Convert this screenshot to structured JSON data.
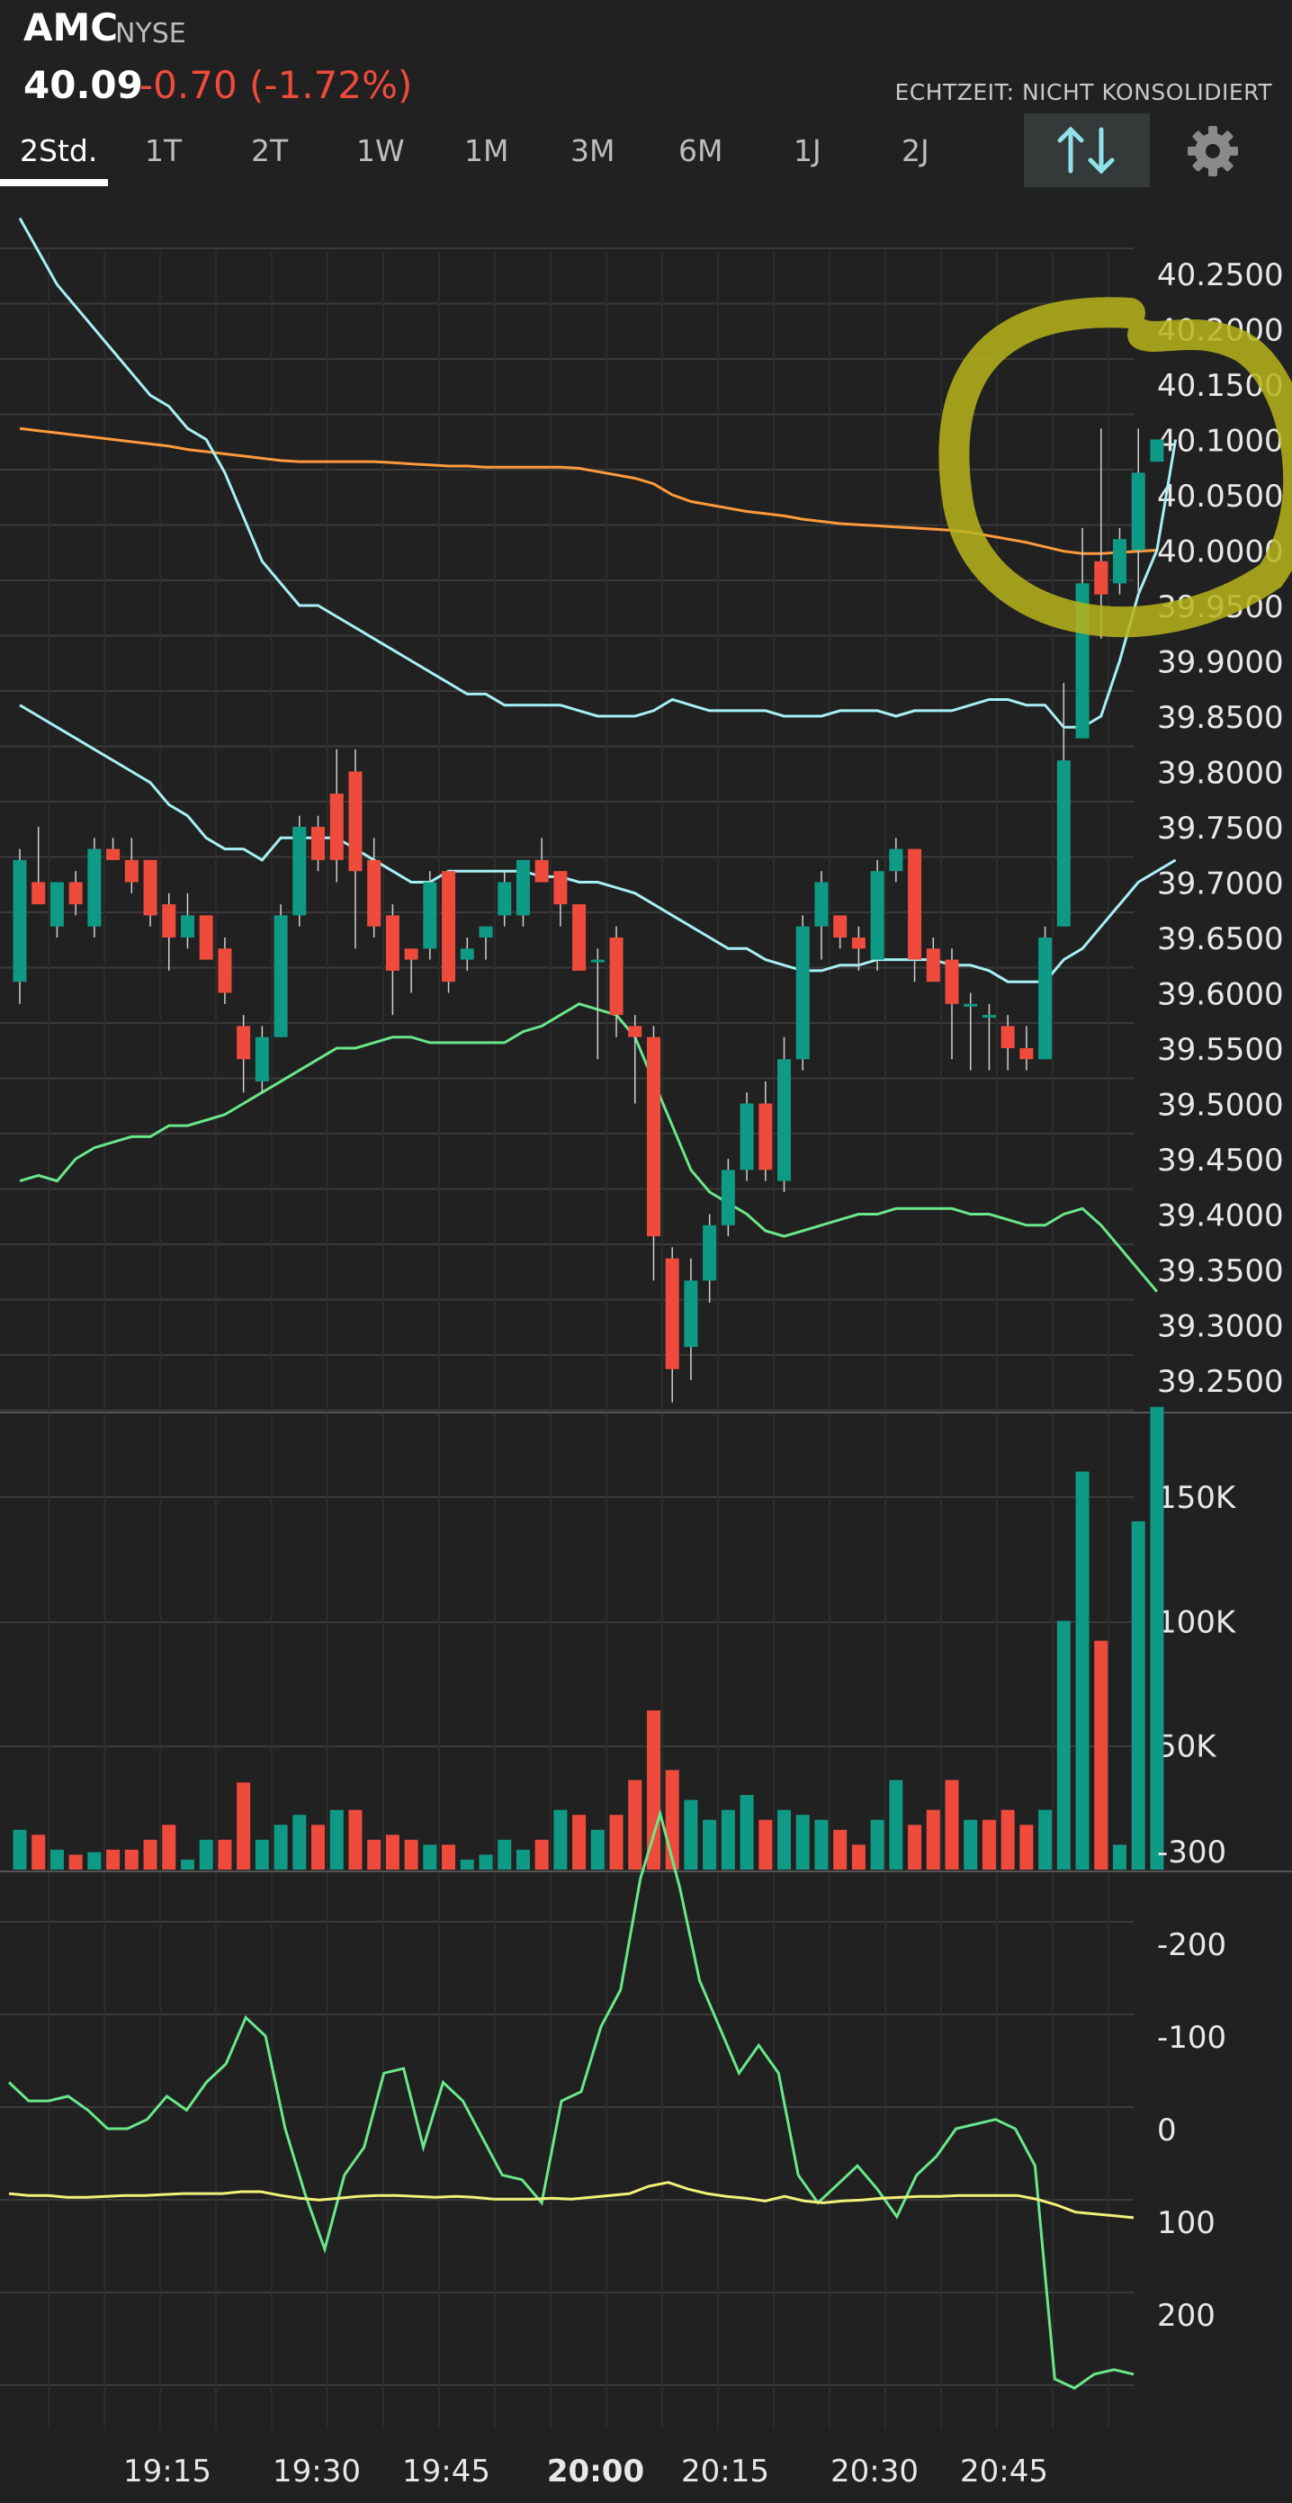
{
  "header": {
    "symbol": "AMC",
    "exchange": "NYSE",
    "price": "40.09",
    "change": "-0.70",
    "change_pct": "(-1.72%)",
    "realtime_note": "ECHTZEIT: NICHT KONSOLIDIERT"
  },
  "tabs": [
    "2Std.",
    "1T",
    "2T",
    "1W",
    "1M",
    "3M",
    "6M",
    "1J",
    "2J"
  ],
  "active_tab": "2Std.",
  "colors": {
    "up": "#0f9a86",
    "down": "#ef4b3c",
    "background": "#212121",
    "highlight": "#b7b41b"
  },
  "icons": [
    "sort-arrows-icon",
    "gear-icon"
  ],
  "chart_data": [
    {
      "type": "candlestick",
      "y_ticks": [
        "40.2500",
        "40.2000",
        "40.1500",
        "40.1000",
        "40.0500",
        "40.0000",
        "39.9500",
        "39.9000",
        "39.8500",
        "39.8000",
        "39.7500",
        "39.7000",
        "39.6500",
        "39.6000",
        "39.5500",
        "39.5000",
        "39.4500",
        "39.4000",
        "39.3500",
        "39.3000",
        "39.2500"
      ],
      "ylim": [
        39.25,
        40.25
      ],
      "x_ticks": [
        "19:15",
        "19:30",
        "19:45",
        "20:00",
        "20:15",
        "20:30",
        "20:45"
      ],
      "candles": [
        {
          "o": 39.61,
          "h": 39.73,
          "l": 39.59,
          "c": 39.72
        },
        {
          "o": 39.7,
          "h": 39.75,
          "l": 39.68,
          "c": 39.68
        },
        {
          "o": 39.66,
          "h": 39.7,
          "l": 39.65,
          "c": 39.7
        },
        {
          "o": 39.7,
          "h": 39.71,
          "l": 39.67,
          "c": 39.68
        },
        {
          "o": 39.66,
          "h": 39.74,
          "l": 39.65,
          "c": 39.73
        },
        {
          "o": 39.73,
          "h": 39.74,
          "l": 39.72,
          "c": 39.72
        },
        {
          "o": 39.72,
          "h": 39.74,
          "l": 39.69,
          "c": 39.7
        },
        {
          "o": 39.72,
          "h": 39.72,
          "l": 39.66,
          "c": 39.67
        },
        {
          "o": 39.68,
          "h": 39.69,
          "l": 39.62,
          "c": 39.65
        },
        {
          "o": 39.65,
          "h": 39.69,
          "l": 39.64,
          "c": 39.67
        },
        {
          "o": 39.67,
          "h": 39.67,
          "l": 39.63,
          "c": 39.63
        },
        {
          "o": 39.64,
          "h": 39.65,
          "l": 39.59,
          "c": 39.6
        },
        {
          "o": 39.57,
          "h": 39.58,
          "l": 39.51,
          "c": 39.54
        },
        {
          "o": 39.52,
          "h": 39.57,
          "l": 39.51,
          "c": 39.56
        },
        {
          "o": 39.56,
          "h": 39.68,
          "l": 39.56,
          "c": 39.67
        },
        {
          "o": 39.67,
          "h": 39.76,
          "l": 39.66,
          "c": 39.75
        },
        {
          "o": 39.75,
          "h": 39.76,
          "l": 39.71,
          "c": 39.72
        },
        {
          "o": 39.78,
          "h": 39.82,
          "l": 39.7,
          "c": 39.72
        },
        {
          "o": 39.8,
          "h": 39.82,
          "l": 39.64,
          "c": 39.71
        },
        {
          "o": 39.72,
          "h": 39.74,
          "l": 39.65,
          "c": 39.66
        },
        {
          "o": 39.67,
          "h": 39.68,
          "l": 39.58,
          "c": 39.62
        },
        {
          "o": 39.64,
          "h": 39.64,
          "l": 39.6,
          "c": 39.63
        },
        {
          "o": 39.64,
          "h": 39.71,
          "l": 39.63,
          "c": 39.7
        },
        {
          "o": 39.71,
          "h": 39.71,
          "l": 39.6,
          "c": 39.61
        },
        {
          "o": 39.63,
          "h": 39.65,
          "l": 39.62,
          "c": 39.64
        },
        {
          "o": 39.65,
          "h": 39.66,
          "l": 39.63,
          "c": 39.66
        },
        {
          "o": 39.67,
          "h": 39.71,
          "l": 39.66,
          "c": 39.7
        },
        {
          "o": 39.67,
          "h": 39.72,
          "l": 39.66,
          "c": 39.72
        },
        {
          "o": 39.72,
          "h": 39.74,
          "l": 39.7,
          "c": 39.7
        },
        {
          "o": 39.71,
          "h": 39.71,
          "l": 39.66,
          "c": 39.68
        },
        {
          "o": 39.68,
          "h": 39.68,
          "l": 39.62,
          "c": 39.62
        },
        {
          "o": 39.63,
          "h": 39.64,
          "l": 39.54,
          "c": 39.63
        },
        {
          "o": 39.65,
          "h": 39.66,
          "l": 39.56,
          "c": 39.58
        },
        {
          "o": 39.57,
          "h": 39.58,
          "l": 39.5,
          "c": 39.56
        },
        {
          "o": 39.56,
          "h": 39.57,
          "l": 39.34,
          "c": 39.38
        },
        {
          "o": 39.36,
          "h": 39.37,
          "l": 39.23,
          "c": 39.26
        },
        {
          "o": 39.28,
          "h": 39.36,
          "l": 39.25,
          "c": 39.34
        },
        {
          "o": 39.34,
          "h": 39.4,
          "l": 39.32,
          "c": 39.39
        },
        {
          "o": 39.39,
          "h": 39.45,
          "l": 39.38,
          "c": 39.44
        },
        {
          "o": 39.44,
          "h": 39.51,
          "l": 39.43,
          "c": 39.5
        },
        {
          "o": 39.5,
          "h": 39.52,
          "l": 39.43,
          "c": 39.44
        },
        {
          "o": 39.43,
          "h": 39.56,
          "l": 39.42,
          "c": 39.54
        },
        {
          "o": 39.54,
          "h": 39.67,
          "l": 39.53,
          "c": 39.66
        },
        {
          "o": 39.66,
          "h": 39.71,
          "l": 39.63,
          "c": 39.7
        },
        {
          "o": 39.67,
          "h": 39.67,
          "l": 39.64,
          "c": 39.65
        },
        {
          "o": 39.65,
          "h": 39.66,
          "l": 39.62,
          "c": 39.64
        },
        {
          "o": 39.63,
          "h": 39.72,
          "l": 39.62,
          "c": 39.71
        },
        {
          "o": 39.71,
          "h": 39.74,
          "l": 39.7,
          "c": 39.73
        },
        {
          "o": 39.73,
          "h": 39.73,
          "l": 39.61,
          "c": 39.63
        },
        {
          "o": 39.64,
          "h": 39.65,
          "l": 39.61,
          "c": 39.61
        },
        {
          "o": 39.63,
          "h": 39.64,
          "l": 39.54,
          "c": 39.59
        },
        {
          "o": 39.59,
          "h": 39.6,
          "l": 39.53,
          "c": 39.59
        },
        {
          "o": 39.58,
          "h": 39.59,
          "l": 39.53,
          "c": 39.58
        },
        {
          "o": 39.57,
          "h": 39.58,
          "l": 39.53,
          "c": 39.55
        },
        {
          "o": 39.55,
          "h": 39.57,
          "l": 39.53,
          "c": 39.54
        },
        {
          "o": 39.54,
          "h": 39.66,
          "l": 39.54,
          "c": 39.65
        },
        {
          "o": 39.66,
          "h": 39.88,
          "l": 39.66,
          "c": 39.81
        },
        {
          "o": 39.83,
          "h": 40.02,
          "l": 39.83,
          "c": 39.97
        },
        {
          "o": 39.99,
          "h": 40.11,
          "l": 39.92,
          "c": 39.96
        },
        {
          "o": 39.97,
          "h": 40.02,
          "l": 39.96,
          "c": 40.01
        },
        {
          "o": 40.0,
          "h": 40.11,
          "l": 39.96,
          "c": 40.07
        },
        {
          "o": 40.08,
          "h": 40.1,
          "l": 40.08,
          "c": 40.1
        }
      ],
      "series": [
        {
          "name": "",
          "color": "#ff9a3c",
          "values": [
            40.11,
            40.108,
            40.106,
            40.104,
            40.102,
            40.1,
            40.098,
            40.096,
            40.094,
            40.091,
            40.089,
            40.087,
            40.085,
            40.083,
            40.081,
            40.08,
            40.08,
            40.08,
            40.08,
            40.08,
            40.079,
            40.078,
            40.077,
            40.076,
            40.076,
            40.075,
            40.075,
            40.075,
            40.075,
            40.075,
            40.074,
            40.071,
            40.068,
            40.065,
            40.06,
            40.05,
            40.044,
            40.041,
            40.038,
            40.035,
            40.033,
            40.031,
            40.028,
            40.026,
            40.024,
            40.023,
            40.022,
            40.021,
            40.02,
            40.019,
            40.018,
            40.016,
            40.013,
            40.01,
            40.007,
            40.003,
            39.999,
            39.997,
            39.997,
            39.998,
            39.999,
            40.0
          ]
        },
        {
          "name": "",
          "color": "#a7f0f5",
          "values": [
            40.3,
            40.27,
            40.24,
            40.22,
            40.2,
            40.18,
            40.16,
            40.14,
            40.13,
            40.11,
            40.1,
            40.07,
            40.03,
            39.99,
            39.97,
            39.95,
            39.95,
            39.94,
            39.93,
            39.92,
            39.91,
            39.9,
            39.89,
            39.88,
            39.87,
            39.87,
            39.86,
            39.86,
            39.86,
            39.86,
            39.855,
            39.85,
            39.85,
            39.85,
            39.855,
            39.865,
            39.86,
            39.855,
            39.855,
            39.855,
            39.855,
            39.85,
            39.85,
            39.85,
            39.855,
            39.855,
            39.855,
            39.85,
            39.855,
            39.855,
            39.855,
            39.86,
            39.865,
            39.865,
            39.86,
            39.86,
            39.84,
            39.84,
            39.85,
            39.9,
            39.96,
            40.0,
            40.1
          ]
        },
        {
          "name": "",
          "color": "#a7f0f5",
          "values": [
            39.86,
            39.85,
            39.84,
            39.83,
            39.82,
            39.81,
            39.8,
            39.79,
            39.77,
            39.76,
            39.74,
            39.73,
            39.73,
            39.72,
            39.74,
            39.74,
            39.74,
            39.74,
            39.73,
            39.72,
            39.71,
            39.7,
            39.7,
            39.71,
            39.71,
            39.71,
            39.71,
            39.71,
            39.705,
            39.705,
            39.7,
            39.7,
            39.695,
            39.69,
            39.68,
            39.67,
            39.66,
            39.65,
            39.64,
            39.64,
            39.63,
            39.625,
            39.62,
            39.62,
            39.625,
            39.625,
            39.63,
            39.63,
            39.63,
            39.63,
            39.625,
            39.625,
            39.62,
            39.61,
            39.61,
            39.61,
            39.63,
            39.64,
            39.66,
            39.68,
            39.7,
            39.71,
            39.72
          ]
        },
        {
          "name": "",
          "color": "#69e88a",
          "values": [
            39.43,
            39.435,
            39.43,
            39.45,
            39.46,
            39.465,
            39.47,
            39.47,
            39.48,
            39.48,
            39.485,
            39.49,
            39.5,
            39.51,
            39.52,
            39.53,
            39.54,
            39.55,
            39.55,
            39.555,
            39.56,
            39.56,
            39.555,
            39.555,
            39.555,
            39.555,
            39.555,
            39.565,
            39.57,
            39.58,
            39.59,
            39.585,
            39.58,
            39.56,
            39.52,
            39.48,
            39.44,
            39.42,
            39.41,
            39.4,
            39.385,
            39.38,
            39.385,
            39.39,
            39.395,
            39.4,
            39.4,
            39.405,
            39.405,
            39.405,
            39.405,
            39.4,
            39.4,
            39.395,
            39.39,
            39.39,
            39.4,
            39.405,
            39.39,
            39.37,
            39.35,
            39.33
          ]
        }
      ]
    },
    {
      "type": "bar",
      "title": "Volume",
      "y_ticks": [
        "150K",
        "100K",
        "50K"
      ],
      "ylim": [
        0,
        183000
      ],
      "values": [
        16000,
        14000,
        8000,
        6000,
        7000,
        8000,
        8000,
        12000,
        18000,
        4000,
        12000,
        12000,
        35000,
        12000,
        18000,
        22000,
        18000,
        24000,
        24000,
        12000,
        14000,
        12000,
        10000,
        10000,
        4000,
        6000,
        12000,
        8000,
        12000,
        24000,
        22000,
        16000,
        22000,
        36000,
        64000,
        40000,
        28000,
        20000,
        24000,
        30000,
        20000,
        24000,
        22000,
        20000,
        16000,
        10000,
        20000,
        36000,
        18000,
        24000,
        36000,
        20000,
        20000,
        24000,
        18000,
        24000,
        100000,
        160000,
        92000,
        10000,
        140000,
        186000
      ],
      "colors_up_down": [
        "u",
        "d",
        "u",
        "d",
        "u",
        "d",
        "d",
        "d",
        "d",
        "u",
        "u",
        "d",
        "d",
        "u",
        "u",
        "u",
        "d",
        "u",
        "d",
        "d",
        "d",
        "d",
        "u",
        "d",
        "u",
        "u",
        "u",
        "u",
        "d",
        "u",
        "d",
        "u",
        "d",
        "d",
        "d",
        "d",
        "u",
        "u",
        "u",
        "u",
        "d",
        "u",
        "u",
        "u",
        "d",
        "d",
        "u",
        "u",
        "d",
        "d",
        "d",
        "u",
        "d",
        "d",
        "d",
        "u",
        "u",
        "u",
        "d",
        "u",
        "u",
        "u"
      ]
    },
    {
      "type": "line",
      "y_ticks": [
        "200",
        "100",
        "0",
        "-100",
        "-200",
        "-300"
      ],
      "ylim": [
        -340,
        270
      ],
      "series": [
        {
          "name": "",
          "color": "#69e88a",
          "values": [
            -50,
            -30,
            -30,
            -35,
            -20,
            0,
            0,
            -10,
            -35,
            -20,
            -50,
            -70,
            -120,
            -100,
            0,
            70,
            130,
            50,
            20,
            -60,
            -65,
            20,
            -50,
            -30,
            10,
            50,
            55,
            80,
            -30,
            -40,
            -110,
            -150,
            -270,
            -340,
            -260,
            -160,
            -110,
            -60,
            -90,
            -60,
            50,
            80,
            60,
            40,
            65,
            95,
            50,
            30,
            0,
            -5,
            -10,
            0,
            40,
            270,
            280,
            265,
            260,
            265
          ]
        },
        {
          "name": "",
          "color": "#f2f27a",
          "values": [
            70,
            72,
            72,
            74,
            74,
            73,
            72,
            72,
            71,
            70,
            70,
            70,
            68,
            68,
            72,
            75,
            77,
            75,
            73,
            72,
            72,
            73,
            74,
            73,
            74,
            76,
            76,
            76,
            75,
            76,
            74,
            72,
            70,
            62,
            58,
            65,
            70,
            73,
            75,
            78,
            73,
            78,
            80,
            78,
            77,
            75,
            74,
            73,
            73,
            72,
            72,
            72,
            72,
            76,
            82,
            90,
            92,
            94,
            96
          ]
        }
      ]
    }
  ]
}
